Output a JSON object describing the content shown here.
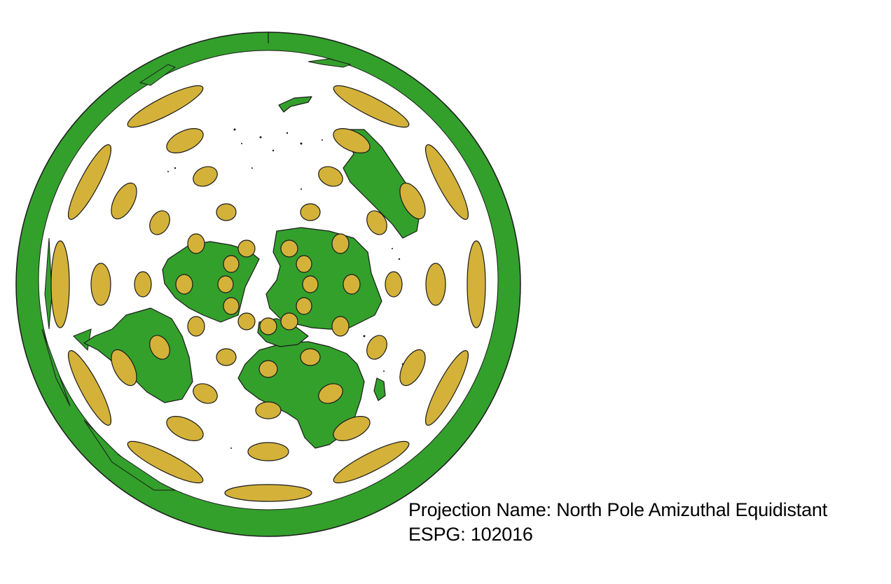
{
  "caption": {
    "projection_line": "Projection Name: North Pole Amizuthal Equidistant",
    "epsg_line": "ESPG: 102016"
  },
  "colors": {
    "land": "#33a02c",
    "ocean": "#ffffff",
    "outline": "#1a1a1a",
    "indicatrix": "#d4b23a"
  }
}
